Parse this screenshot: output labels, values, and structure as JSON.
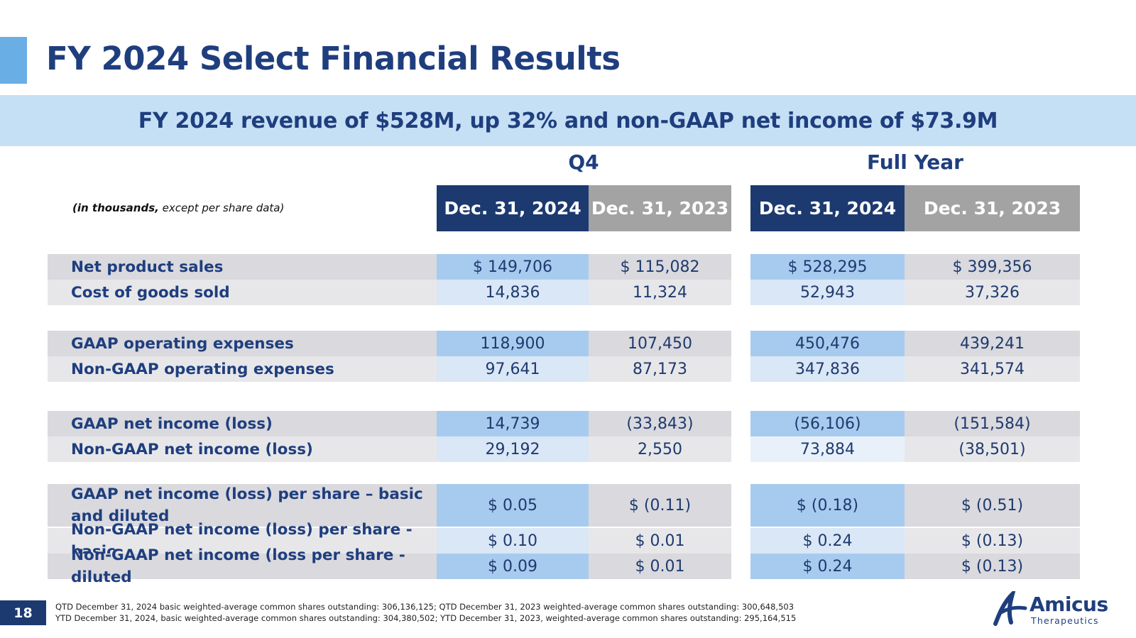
{
  "slide": {
    "title": "FY 2024 Select Financial Results",
    "banner": "FY 2024 revenue of $528M, up 32% and non-GAAP net income of $73.9M",
    "page_number": "18"
  },
  "table": {
    "units_bold": "(in thousands,",
    "units_rest": " except per share data)",
    "group_q4": "Q4",
    "group_fy": "Full Year",
    "headers": [
      "Dec. 31, 2024",
      "Dec. 31, 2023",
      "Dec. 31, 2024",
      "Dec. 31, 2023"
    ],
    "rows": [
      {
        "label": "Net product sales",
        "values": [
          "$ 149,706",
          "$ 115,082",
          "$ 528,295",
          "$ 399,356"
        ]
      },
      {
        "label": "Cost of goods sold",
        "values": [
          "14,836",
          "11,324",
          "52,943",
          "37,326"
        ]
      },
      {
        "label": "GAAP operating expenses",
        "values": [
          "118,900",
          "107,450",
          "450,476",
          "439,241"
        ]
      },
      {
        "label": "Non-GAAP operating expenses",
        "values": [
          "97,641",
          "87,173",
          "347,836",
          "341,574"
        ]
      },
      {
        "label": "GAAP net income (loss)",
        "values": [
          "14,739",
          "(33,843)",
          "(56,106)",
          "(151,584)"
        ]
      },
      {
        "label": "Non-GAAP net income (loss)",
        "values": [
          "29,192",
          "2,550",
          "73,884",
          "(38,501)"
        ]
      },
      {
        "label": "GAAP net income (loss) per share – basic and diluted",
        "values": [
          "$ 0.05",
          "$ (0.11)",
          "$ (0.18)",
          "$ (0.51)"
        ]
      },
      {
        "label": "Non-GAAP net income (loss) per share - basic",
        "values": [
          "$ 0.10",
          "$ 0.01",
          "$ 0.24",
          "$ (0.13)"
        ]
      },
      {
        "label": "Non-GAAP net income (loss per share - diluted",
        "values": [
          "$ 0.09",
          "$ 0.01",
          "$ 0.24",
          "$ (0.13)"
        ]
      }
    ]
  },
  "footnotes": [
    "QTD December 31, 2024 basic weighted-average common shares outstanding: 306,136,125; QTD December 31, 2023 weighted-average common shares outstanding: 300,648,503",
    "YTD December 31, 2024, basic weighted-average common shares outstanding: 304,380,502; YTD December 31, 2023, weighted-average common shares outstanding: 295,164,515"
  ],
  "logo": {
    "name": "Amicus",
    "sub": "Therapeutics"
  },
  "colors": {
    "navy": "#1c3a70",
    "title_blue": "#1f3e7e",
    "banner": "#c5dff5",
    "accent": "#6aaee6",
    "header_gray": "#a3a3a3",
    "cell_blue_strong": "#a7cbef",
    "cell_blue_light": "#d9e7f6",
    "cell_gray_strong": "#d9d9de",
    "cell_gray_light": "#e7e7ea"
  }
}
